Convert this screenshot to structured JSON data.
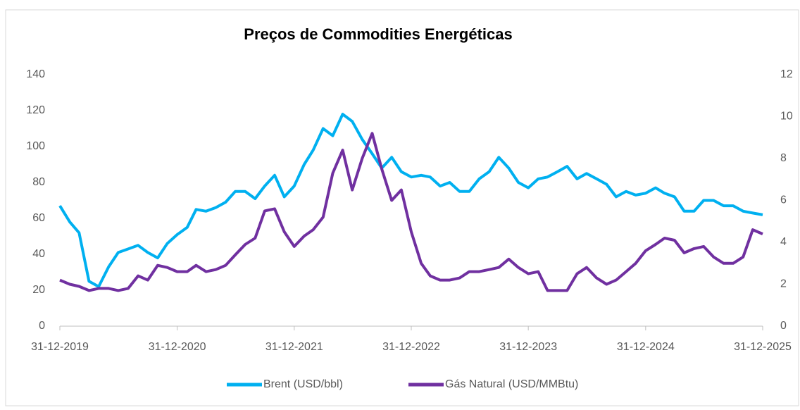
{
  "chart_data": {
    "type": "line",
    "title": "Preços de Commodities Energéticas",
    "x": [
      "31-12-2019",
      "31-01-2020",
      "29-02-2020",
      "31-03-2020",
      "30-04-2020",
      "31-05-2020",
      "30-06-2020",
      "31-07-2020",
      "31-08-2020",
      "30-09-2020",
      "31-10-2020",
      "30-11-2020",
      "31-12-2020",
      "31-01-2021",
      "28-02-2021",
      "31-03-2021",
      "30-04-2021",
      "31-05-2021",
      "30-06-2021",
      "31-07-2021",
      "31-08-2021",
      "30-09-2021",
      "31-10-2021",
      "30-11-2021",
      "31-12-2021",
      "31-01-2022",
      "28-02-2022",
      "31-03-2022",
      "30-04-2022",
      "31-05-2022",
      "30-06-2022",
      "31-07-2022",
      "31-08-2022",
      "30-09-2022",
      "31-10-2022",
      "30-11-2022",
      "31-12-2022",
      "31-01-2023",
      "28-02-2023",
      "31-03-2023",
      "30-04-2023",
      "31-05-2023",
      "30-06-2023",
      "31-07-2023",
      "31-08-2023",
      "30-09-2023",
      "31-10-2023",
      "30-11-2023",
      "31-12-2023",
      "31-01-2024",
      "29-02-2024",
      "31-03-2024",
      "30-04-2024",
      "31-05-2024",
      "30-06-2024",
      "31-07-2024",
      "31-08-2024",
      "30-09-2024",
      "31-10-2024",
      "30-11-2024",
      "31-12-2024",
      "31-01-2025",
      "28-02-2025",
      "31-03-2025",
      "30-04-2025",
      "31-05-2025",
      "30-06-2025",
      "31-07-2025",
      "31-08-2025",
      "30-09-2025",
      "31-10-2025",
      "30-11-2025",
      "31-12-2025"
    ],
    "series": [
      {
        "name": "Brent (USD/bbl)",
        "color": "#00b0f0",
        "axis": "y",
        "values": [
          67,
          58,
          52,
          25,
          22,
          33,
          41,
          43,
          45,
          41,
          38,
          46,
          51,
          55,
          65,
          64,
          66,
          69,
          75,
          75,
          71,
          78,
          84,
          72,
          78,
          90,
          98,
          110,
          106,
          118,
          114,
          104,
          96,
          88,
          94,
          86,
          83,
          84,
          83,
          78,
          80,
          75,
          75,
          82,
          86,
          94,
          88,
          80,
          77,
          82,
          83,
          86,
          89,
          82,
          85,
          82,
          79,
          72,
          75,
          73,
          74,
          77,
          74,
          72,
          64,
          64,
          70,
          70,
          67,
          67,
          64,
          63,
          62
        ]
      },
      {
        "name": "Gás Natural (USD/MMBtu)",
        "color": "#7030a0",
        "axis": "y2",
        "values": [
          2.2,
          2.0,
          1.9,
          1.7,
          1.8,
          1.8,
          1.7,
          1.8,
          2.4,
          2.2,
          2.9,
          2.8,
          2.6,
          2.6,
          2.9,
          2.6,
          2.7,
          2.9,
          3.4,
          3.9,
          4.2,
          5.5,
          5.6,
          4.5,
          3.8,
          4.3,
          4.6,
          5.2,
          7.3,
          8.4,
          6.5,
          8.0,
          9.2,
          7.5,
          6.0,
          6.5,
          4.5,
          3.0,
          2.4,
          2.2,
          2.2,
          2.3,
          2.6,
          2.6,
          2.7,
          2.8,
          3.2,
          2.8,
          2.5,
          2.6,
          1.7,
          1.7,
          1.7,
          2.5,
          2.8,
          2.3,
          2.0,
          2.2,
          2.6,
          3.0,
          3.6,
          3.9,
          4.2,
          4.1,
          3.5,
          3.7,
          3.8,
          3.3,
          3.0,
          3.0,
          3.3,
          4.6,
          4.4
        ]
      }
    ],
    "xlim": [
      "31-12-2019",
      "31-12-2025"
    ],
    "xticks": [
      "31-12-2019",
      "31-12-2020",
      "31-12-2021",
      "31-12-2022",
      "31-12-2023",
      "31-12-2024",
      "31-12-2025"
    ],
    "ylim": [
      0,
      140
    ],
    "yticks": [
      0,
      20,
      40,
      60,
      80,
      100,
      120,
      140
    ],
    "y2lim": [
      0,
      12
    ],
    "y2ticks": [
      0,
      2,
      4,
      6,
      8,
      10,
      12
    ],
    "legend": "bottom"
  }
}
